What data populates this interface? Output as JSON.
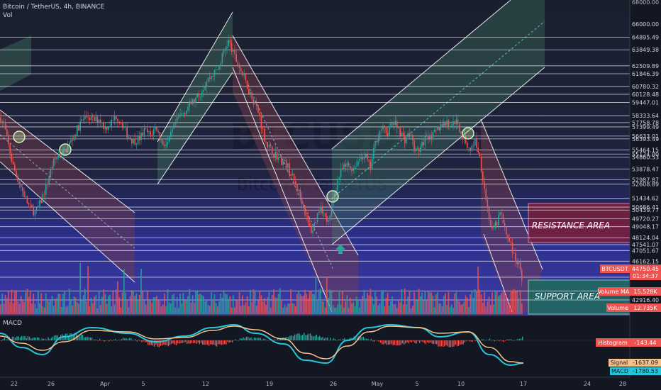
{
  "header": {
    "symbol_title": "Bitcoin / TetherUS, 4h, BINANCE",
    "vol_label": "Vol"
  },
  "watermark": {
    "ticker": "BTCUSDT",
    "name": "Bitcoin / TetherUS"
  },
  "annotations": {
    "resistance": "RESISTANCE AREA",
    "support": "SUPPORT AREA"
  },
  "macd_panel": {
    "title": "MACD",
    "histogram_label": "Histogram",
    "histogram_value": "-143.44",
    "signal_label": "Signal",
    "signal_value": "-1637.09",
    "macd_label": "MACD",
    "macd_value": "-1780.53"
  },
  "price_badges": {
    "current_symbol": "BTCUSDT",
    "current_price": "44750.45",
    "countdown": "01:34:37",
    "volume_ma_label": "Volume MA",
    "volume_ma_value": "15.528K",
    "volume_label": "Volume",
    "volume_value": "12.735K"
  },
  "colors": {
    "background": "#131722",
    "up": "#26a69a",
    "down": "#ef5350",
    "level_line": "#ffffff",
    "resistance_fill": "#7a1f3a",
    "support_fill": "#1f6b5a",
    "macd_line": "#26c6da",
    "signal_line": "#f5c18a"
  },
  "chart_data": {
    "type": "candlestick",
    "timeframe": "4h",
    "y_axis": {
      "top_label": "68000.00",
      "labels": [
        "66000.00",
        "64895.49",
        "63849.38",
        "62509.89",
        "61846.39",
        "60780.32",
        "60128.48",
        "59447.01",
        "58333.64",
        "57758.78",
        "57399.49",
        "56633.01",
        "56393.49",
        "55464.15",
        "55124.00",
        "54860.53",
        "53878.47",
        "52987.87",
        "52608.89",
        "51434.62",
        "50686.41",
        "50439.77",
        "49720.27",
        "49048.17",
        "48124.04",
        "47541.07",
        "47051.67",
        "46162.15",
        "44820.03",
        "43671.40",
        "42916.40"
      ]
    },
    "x_axis": {
      "labels": [
        "22",
        "26",
        "Apr",
        "5",
        "12",
        "19",
        "26",
        "May",
        "5",
        "10",
        "17",
        "24",
        "28"
      ]
    },
    "price_path": [
      [
        0,
        58200
      ],
      [
        6,
        57500
      ],
      [
        12,
        55800
      ],
      [
        18,
        54200
      ],
      [
        24,
        53200
      ],
      [
        30,
        52300
      ],
      [
        36,
        51400
      ],
      [
        42,
        50600
      ],
      [
        50,
        50200
      ],
      [
        58,
        51200
      ],
      [
        66,
        52600
      ],
      [
        74,
        54300
      ],
      [
        82,
        55000
      ],
      [
        92,
        55400
      ],
      [
        100,
        56200
      ],
      [
        108,
        57100
      ],
      [
        116,
        58000
      ],
      [
        124,
        58300
      ],
      [
        132,
        57900
      ],
      [
        140,
        58100
      ],
      [
        148,
        57300
      ],
      [
        156,
        57700
      ],
      [
        164,
        58300
      ],
      [
        172,
        57700
      ],
      [
        180,
        56700
      ],
      [
        188,
        56200
      ],
      [
        196,
        56400
      ],
      [
        204,
        57100
      ],
      [
        212,
        56700
      ],
      [
        220,
        57400
      ],
      [
        228,
        56100
      ],
      [
        236,
        55900
      ],
      [
        244,
        57200
      ],
      [
        252,
        58200
      ],
      [
        260,
        58700
      ],
      [
        268,
        59300
      ],
      [
        276,
        59700
      ],
      [
        284,
        60400
      ],
      [
        292,
        61300
      ],
      [
        300,
        61800
      ],
      [
        308,
        62300
      ],
      [
        316,
        63800
      ],
      [
        322,
        64600
      ],
      [
        328,
        63600
      ],
      [
        336,
        62600
      ],
      [
        344,
        61500
      ],
      [
        352,
        60300
      ],
      [
        360,
        59300
      ],
      [
        366,
        58300
      ],
      [
        372,
        56600
      ],
      [
        380,
        55600
      ],
      [
        388,
        55100
      ],
      [
        396,
        54600
      ],
      [
        404,
        54300
      ],
      [
        412,
        53200
      ],
      [
        420,
        52100
      ],
      [
        428,
        50800
      ],
      [
        434,
        49300
      ],
      [
        440,
        48600
      ],
      [
        446,
        49800
      ],
      [
        452,
        50900
      ],
      [
        458,
        49800
      ],
      [
        464,
        49300
      ],
      [
        470,
        51400
      ],
      [
        476,
        52900
      ],
      [
        482,
        53800
      ],
      [
        490,
        54200
      ],
      [
        498,
        53900
      ],
      [
        506,
        54700
      ],
      [
        514,
        55100
      ],
      [
        522,
        53900
      ],
      [
        530,
        56300
      ],
      [
        538,
        57300
      ],
      [
        546,
        56900
      ],
      [
        554,
        57800
      ],
      [
        562,
        57300
      ],
      [
        570,
        56300
      ],
      [
        578,
        56900
      ],
      [
        586,
        55300
      ],
      [
        594,
        55700
      ],
      [
        602,
        56800
      ],
      [
        610,
        56600
      ],
      [
        618,
        57300
      ],
      [
        626,
        57800
      ],
      [
        634,
        57500
      ],
      [
        642,
        57900
      ],
      [
        650,
        57000
      ],
      [
        658,
        55900
      ],
      [
        664,
        55500
      ],
      [
        670,
        56300
      ],
      [
        676,
        55000
      ],
      [
        682,
        52700
      ],
      [
        688,
        50300
      ],
      [
        694,
        48600
      ],
      [
        700,
        49300
      ],
      [
        706,
        50300
      ],
      [
        712,
        48600
      ],
      [
        718,
        48100
      ],
      [
        724,
        46600
      ],
      [
        730,
        46100
      ],
      [
        736,
        44800
      ]
    ],
    "volume_style": "dense histogram, red and green bars",
    "macd": {
      "macd_path": [
        [
          0,
          470
        ],
        [
          30,
          490
        ],
        [
          60,
          500
        ],
        [
          90,
          475
        ],
        [
          130,
          462
        ],
        [
          180,
          470
        ],
        [
          220,
          482
        ],
        [
          260,
          474
        ],
        [
          300,
          462
        ],
        [
          330,
          458
        ],
        [
          360,
          470
        ],
        [
          400,
          485
        ],
        [
          430,
          508
        ],
        [
          460,
          512
        ],
        [
          490,
          480
        ],
        [
          520,
          462
        ],
        [
          550,
          458
        ],
        [
          590,
          462
        ],
        [
          620,
          475
        ],
        [
          660,
          468
        ],
        [
          690,
          500
        ],
        [
          720,
          515
        ],
        [
          738,
          512
        ]
      ],
      "signal_path": [
        [
          0,
          474
        ],
        [
          30,
          484
        ],
        [
          60,
          494
        ],
        [
          90,
          482
        ],
        [
          130,
          466
        ],
        [
          180,
          468
        ],
        [
          220,
          478
        ],
        [
          260,
          476
        ],
        [
          300,
          466
        ],
        [
          330,
          460
        ],
        [
          360,
          465
        ],
        [
          400,
          478
        ],
        [
          430,
          498
        ],
        [
          460,
          506
        ],
        [
          490,
          488
        ],
        [
          520,
          468
        ],
        [
          550,
          460
        ],
        [
          590,
          462
        ],
        [
          620,
          470
        ],
        [
          660,
          468
        ],
        [
          690,
          490
        ],
        [
          720,
          510
        ],
        [
          738,
          512
        ]
      ]
    }
  }
}
